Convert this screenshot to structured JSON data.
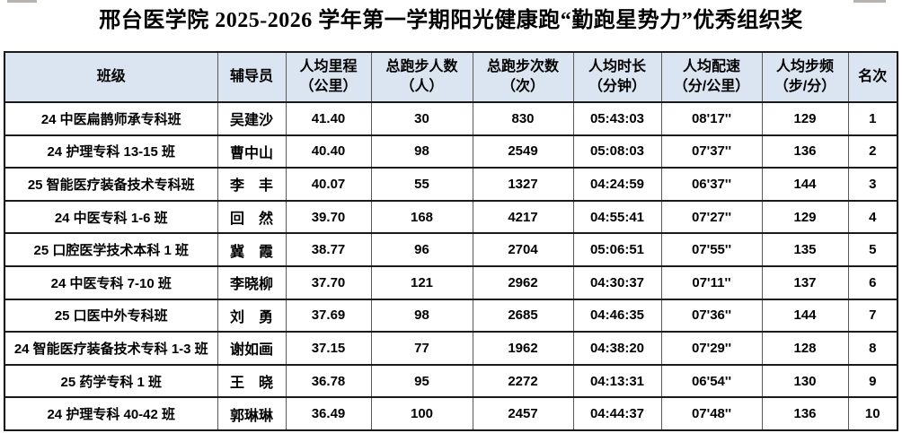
{
  "page": {
    "title": "邢台医学院 2025-2026 学年第一学期阳光健康跑“勤跑星势力”优秀组织奖"
  },
  "colors": {
    "header_bg": "#dbe5f1",
    "outer_border": "#000000",
    "horizontal_border": "#1a1a1a",
    "vertical_border": "#5a5a5a"
  },
  "table": {
    "col_keys": [
      "class-name",
      "counselor",
      "avg-distance-km",
      "total-runners",
      "total-runs",
      "avg-duration",
      "avg-pace",
      "avg-cadence",
      "rank"
    ],
    "headers": [
      "班级",
      "辅导员",
      "人均里程\n（公里）",
      "总跑步人数\n（人）",
      "总跑步次数\n（次）",
      "人均时长\n（分钟）",
      "人均配速\n（分/公里）",
      "人均步频\n（步/分）",
      "名次"
    ],
    "rows": [
      [
        "24 中医扁鹊师承专科班",
        "吴建沙",
        "41.40",
        "30",
        "830",
        "05:43:03",
        "08'17''",
        "129",
        "1"
      ],
      [
        "24 护理专科 13-15 班",
        "曹中山",
        "40.40",
        "98",
        "2549",
        "05:08:03",
        "07'37''",
        "136",
        "2"
      ],
      [
        "25 智能医疗装备技术专科班",
        "李　丰",
        "40.07",
        "55",
        "1327",
        "04:24:59",
        "06'37''",
        "144",
        "3"
      ],
      [
        "24 中医专科 1-6 班",
        "回　然",
        "39.70",
        "168",
        "4217",
        "04:55:41",
        "07'27''",
        "129",
        "4"
      ],
      [
        "25 口腔医学技术本科 1 班",
        "冀　霞",
        "38.77",
        "96",
        "2704",
        "05:06:51",
        "07'55''",
        "135",
        "5"
      ],
      [
        "24 中医专科 7-10 班",
        "李晓柳",
        "37.70",
        "121",
        "2962",
        "04:30:37",
        "07'11''",
        "137",
        "6"
      ],
      [
        "25 口医中外专科班",
        "刘　勇",
        "37.69",
        "98",
        "2685",
        "04:46:35",
        "07'36''",
        "144",
        "7"
      ],
      [
        "24 智能医疗装备技术专科 1-3 班",
        "谢如画",
        "37.15",
        "77",
        "1962",
        "04:38:20",
        "07'29''",
        "128",
        "8"
      ],
      [
        "25 药学专科 1 班",
        "王　晓",
        "36.78",
        "95",
        "2272",
        "04:13:31",
        "06'54''",
        "130",
        "9"
      ],
      [
        "24 护理专科 40-42 班",
        "郭琳琳",
        "36.49",
        "100",
        "2457",
        "04:44:37",
        "07'48''",
        "136",
        "10"
      ]
    ]
  }
}
